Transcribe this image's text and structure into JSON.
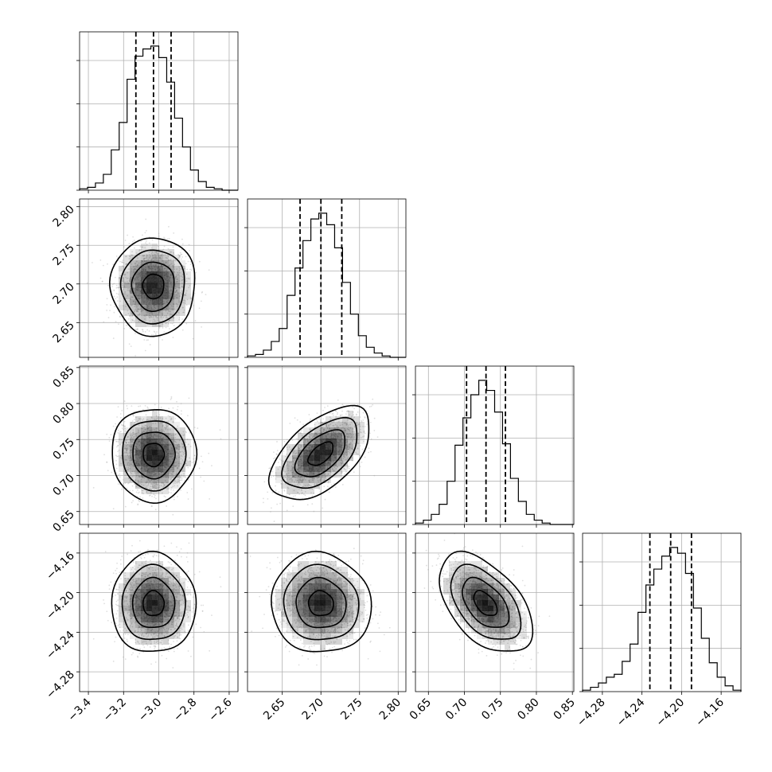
{
  "chart_data": {
    "type": "corner",
    "n_params": 4,
    "params": [
      {
        "range": [
          -3.45,
          -2.55
        ],
        "ticks": [
          -3.4,
          -3.2,
          -3.0,
          -2.8,
          -2.6
        ],
        "tick_labels": [
          "−3.4",
          "−3.2",
          "−3.0",
          "−2.8",
          "−2.6"
        ],
        "median": -3.03,
        "quantiles": [
          -3.13,
          -3.03,
          -2.93
        ],
        "hist": {
          "edges": [
            -3.45,
            -3.405,
            -3.36,
            -3.315,
            -3.27,
            -3.225,
            -3.18,
            -3.135,
            -3.09,
            -3.045,
            -3.0,
            -2.955,
            -2.91,
            -2.865,
            -2.82,
            -2.775,
            -2.73,
            -2.685,
            -2.64,
            -2.595,
            -2.55
          ],
          "counts": [
            0.01,
            0.02,
            0.05,
            0.11,
            0.28,
            0.47,
            0.77,
            0.93,
            0.98,
            1.0,
            0.92,
            0.75,
            0.5,
            0.3,
            0.14,
            0.06,
            0.02,
            0.01,
            0.0,
            0.0
          ]
        }
      },
      {
        "range": [
          2.605,
          2.81
        ],
        "ticks": [
          2.65,
          2.7,
          2.75,
          2.8
        ],
        "tick_labels": [
          "2.65",
          "2.70",
          "2.75",
          "2.80"
        ],
        "median": 2.7,
        "quantiles": [
          2.673,
          2.7,
          2.727
        ],
        "hist": {
          "edges": [
            2.605,
            2.61525,
            2.6255,
            2.63575,
            2.646,
            2.65625,
            2.6665,
            2.67675,
            2.687,
            2.69725,
            2.7075,
            2.71775,
            2.728,
            2.73825,
            2.7485,
            2.75875,
            2.769,
            2.77925,
            2.7895,
            2.79975,
            2.81
          ],
          "counts": [
            0.01,
            0.02,
            0.05,
            0.11,
            0.2,
            0.43,
            0.62,
            0.81,
            0.96,
            1.0,
            0.92,
            0.76,
            0.52,
            0.3,
            0.15,
            0.07,
            0.03,
            0.01,
            0.0,
            0.0
          ]
        }
      },
      {
        "range": [
          0.632,
          0.852
        ],
        "ticks": [
          0.65,
          0.7,
          0.75,
          0.8,
          0.85
        ],
        "tick_labels": [
          "0.65",
          "0.70",
          "0.75",
          "0.80",
          "0.85"
        ],
        "median": 0.73,
        "quantiles": [
          0.703,
          0.73,
          0.757
        ],
        "hist": {
          "edges": [
            0.632,
            0.643,
            0.654,
            0.665,
            0.676,
            0.687,
            0.698,
            0.709,
            0.72,
            0.731,
            0.742,
            0.753,
            0.764,
            0.775,
            0.786,
            0.797,
            0.808,
            0.819,
            0.83,
            0.841,
            0.852
          ],
          "counts": [
            0.01,
            0.03,
            0.07,
            0.14,
            0.3,
            0.55,
            0.74,
            0.9,
            1.0,
            0.93,
            0.78,
            0.56,
            0.32,
            0.16,
            0.07,
            0.03,
            0.01,
            0.0,
            0.0,
            0.0
          ]
        }
      },
      {
        "range": [
          -4.3,
          -4.14
        ],
        "ticks": [
          -4.28,
          -4.24,
          -4.2,
          -4.16
        ],
        "tick_labels": [
          "−4.28",
          "−4.24",
          "−4.20",
          "−4.16"
        ],
        "median": -4.211,
        "quantiles": [
          -4.232,
          -4.211,
          -4.19
        ],
        "hist": {
          "edges": [
            -4.3,
            -4.292,
            -4.284,
            -4.276,
            -4.268,
            -4.26,
            -4.252,
            -4.244,
            -4.236,
            -4.228,
            -4.22,
            -4.212,
            -4.204,
            -4.196,
            -4.188,
            -4.18,
            -4.172,
            -4.164,
            -4.156,
            -4.148,
            -4.14
          ],
          "counts": [
            0.01,
            0.03,
            0.06,
            0.1,
            0.12,
            0.21,
            0.33,
            0.55,
            0.74,
            0.85,
            0.94,
            1.0,
            0.96,
            0.82,
            0.58,
            0.37,
            0.2,
            0.1,
            0.04,
            0.01
          ]
        }
      }
    ],
    "pairs": [
      {
        "x_param": 0,
        "y_param": 1,
        "center": [
          -3.03,
          2.697
        ],
        "sigma": [
          0.1,
          0.0265
        ],
        "correlation": 0.0
      },
      {
        "x_param": 0,
        "y_param": 2,
        "center": [
          -3.03,
          0.729
        ],
        "sigma": [
          0.1,
          0.027
        ],
        "correlation": 0.0
      },
      {
        "x_param": 1,
        "y_param": 2,
        "center": [
          2.7,
          0.73
        ],
        "sigma": [
          0.027,
          0.027
        ],
        "correlation": 0.55
      },
      {
        "x_param": 0,
        "y_param": 3,
        "center": [
          -3.03,
          -4.211
        ],
        "sigma": [
          0.1,
          0.021
        ],
        "correlation": 0.0
      },
      {
        "x_param": 1,
        "y_param": 3,
        "center": [
          2.7,
          -4.211
        ],
        "sigma": [
          0.027,
          0.021
        ],
        "correlation": -0.05
      },
      {
        "x_param": 2,
        "y_param": 3,
        "center": [
          0.729,
          -4.211
        ],
        "sigma": [
          0.027,
          0.021
        ],
        "correlation": -0.5
      }
    ],
    "contour_levels_sigma": [
      0.5,
      1.0,
      1.5,
      2.0
    ],
    "grid": true,
    "colors": {
      "line": "#000000",
      "grid": "#b0b0b0",
      "points": "#9a9a9a",
      "density": "#000000"
    }
  }
}
